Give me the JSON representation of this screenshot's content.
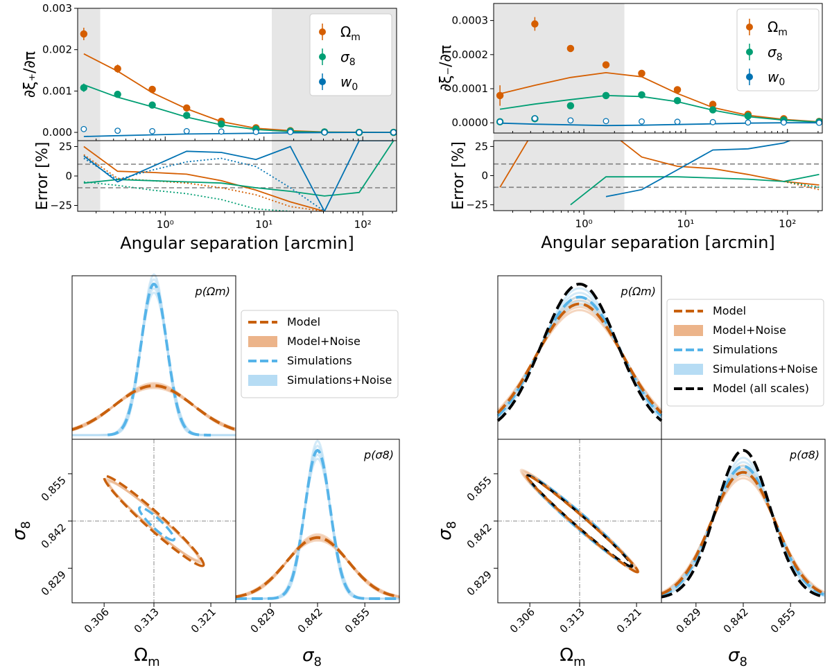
{
  "colors": {
    "omega": "#d55e00",
    "sigma": "#009e73",
    "w0": "#0072b2",
    "model": "#c8600d",
    "model_noise": "#ecb48a",
    "sim": "#56b4e9",
    "sim_noise": "#b6dcf4",
    "allscales": "#000000",
    "shade": "#e6e6e6",
    "grid": "#808080"
  },
  "chart_data": [
    {
      "id": "xi_plus",
      "type": "scatter+line",
      "title": "",
      "xlabel": "Angular separation [arcmin]",
      "ylabel_top": "∂ξ₊/∂π",
      "ylabel_bottom": "Error [%]",
      "xscale": "log",
      "xlim": [
        0.13,
        220
      ],
      "ylim_top": [
        -0.0002,
        0.003
      ],
      "ylim_bottom": [
        -30,
        30
      ],
      "xticks": [
        {
          "v": 1,
          "label": "10⁰"
        },
        {
          "v": 10,
          "label": "10¹"
        },
        {
          "v": 100,
          "label": "10²"
        }
      ],
      "yticks_top": [
        "0.000",
        "0.001",
        "0.002",
        "0.003"
      ],
      "yticks_bottom": [
        "25",
        "0",
        "−25"
      ],
      "shaded_x": [
        [
          0.13,
          0.22
        ],
        [
          12,
          220
        ]
      ],
      "error_refs": [
        10,
        -10
      ],
      "x": [
        0.15,
        0.33,
        0.74,
        1.65,
        3.7,
        8.3,
        18.5,
        41,
        92,
        205
      ],
      "series": [
        {
          "name": "Ω_m",
          "legend": "Ωm",
          "color_key": "omega",
          "points": [
            0.00238,
            0.00154,
            0.00104,
            0.00059,
            0.00027,
            0.00011,
            4e-05,
            1e-05,
            0.0,
            0.0
          ],
          "errs": [
            0.00015,
            0.0001,
            8e-05,
            4e-05,
            2e-05,
            1e-05,
            1e-05,
            1e-05,
            1e-05,
            1e-05
          ],
          "open": false,
          "model": [
            0.0019,
            0.00148,
            0.00096,
            0.00057,
            0.00026,
            0.0001,
            4e-05,
            1e-05,
            5e-06,
            0.0
          ],
          "error_solid": [
            25,
            4,
            3,
            1.5,
            -4,
            -12,
            -22,
            -30,
            null,
            null
          ],
          "error_dotted": [
            18,
            -2,
            -4,
            -6,
            -10,
            -16,
            -26,
            -30,
            null,
            null
          ]
        },
        {
          "name": "σ_8",
          "legend": "σ8",
          "color_key": "sigma",
          "points": [
            0.00108,
            0.00092,
            0.00066,
            0.00041,
            0.0002,
            8e-05,
            3e-05,
            1e-05,
            0.0,
            0.0
          ],
          "errs": [
            0.0001,
            8e-05,
            6e-05,
            4e-05,
            2e-05,
            1e-05,
            1e-05,
            1e-05,
            1e-05,
            1e-05
          ],
          "open": false,
          "model": [
            0.00115,
            0.00085,
            0.00062,
            0.00037,
            0.00018,
            7e-05,
            2e-05,
            5e-06,
            0.0,
            0.0
          ],
          "error_solid": [
            -6,
            -3,
            -4,
            -5,
            -6,
            -10,
            -13,
            -17,
            -14,
            30
          ],
          "error_dotted": [
            -5,
            -8,
            -12,
            -15,
            -20,
            -28,
            -30,
            null,
            null,
            null
          ]
        },
        {
          "name": "w_0",
          "legend": "w0",
          "color_key": "w0",
          "points": [
            8e-05,
            4e-05,
            3e-05,
            3e-05,
            2e-05,
            1e-05,
            1e-05,
            0.0,
            0.0,
            0.0
          ],
          "errs": [
            3e-05,
            3e-05,
            3e-05,
            2e-05,
            2e-05,
            1e-05,
            1e-05,
            1e-05,
            1e-05,
            1e-05
          ],
          "open": true,
          "model": [
            -0.0001,
            -8e-05,
            -6e-05,
            -4e-05,
            -3e-05,
            -2e-05,
            -1e-05,
            -5e-06,
            0.0,
            0.0
          ],
          "error_solid": [
            17,
            -5,
            8,
            21,
            20,
            14,
            25,
            -30,
            30,
            30
          ],
          "error_dotted": [
            15,
            -3,
            5,
            12,
            15,
            8,
            -10,
            -30,
            null,
            null
          ]
        }
      ]
    },
    {
      "id": "xi_minus",
      "type": "scatter+line",
      "title": "",
      "xlabel": "Angular separation [arcmin]",
      "ylabel_top": "∂ξ₋/∂π",
      "ylabel_bottom": "Error [%]",
      "xscale": "log",
      "xlim": [
        0.13,
        220
      ],
      "ylim_top": [
        -3e-05,
        0.00035
      ],
      "ylim_bottom": [
        -30,
        30
      ],
      "xticks": [
        {
          "v": 1,
          "label": "10⁰"
        },
        {
          "v": 10,
          "label": "10¹"
        },
        {
          "v": 100,
          "label": "10²"
        }
      ],
      "yticks_top": [
        "0.0000",
        "0.0001",
        "0.0002",
        "0.0003"
      ],
      "yticks_bottom": [
        "25",
        "0",
        "−25"
      ],
      "shaded_x": [
        [
          0.13,
          2.5
        ]
      ],
      "error_refs": [
        10,
        -10
      ],
      "x": [
        0.15,
        0.33,
        0.74,
        1.65,
        3.7,
        8.3,
        18.5,
        41,
        92,
        205
      ],
      "series": [
        {
          "name": "Ω_m",
          "legend": "Ωm",
          "color_key": "omega",
          "points": [
            8e-05,
            0.00029,
            0.000218,
            0.00017,
            0.000145,
            9.7e-05,
            5.4e-05,
            2.5e-05,
            1.2e-05,
            4e-06
          ],
          "errs": [
            3e-05,
            2e-05,
            1e-05,
            1e-05,
            8e-06,
            8e-06,
            6e-06,
            5e-06,
            4e-06,
            3e-06
          ],
          "open": false,
          "model": [
            8.5e-05,
            0.00011,
            0.000133,
            0.000147,
            0.000135,
            8.6e-05,
            4.5e-05,
            2.2e-05,
            1e-05,
            3e-06
          ],
          "error_solid": [
            -10,
            40,
            40,
            40,
            16,
            8,
            6,
            1,
            -5,
            -8
          ],
          "error_dotted": [
            null,
            null,
            null,
            null,
            null,
            null,
            null,
            null,
            -5,
            -12
          ]
        },
        {
          "name": "σ_8",
          "legend": "σ8",
          "color_key": "sigma",
          "points": [
            3e-06,
            1.2e-05,
            5e-05,
            8e-05,
            8.2e-05,
            6.5e-05,
            3.8e-05,
            2e-05,
            8e-06,
            3e-06
          ],
          "errs": [
            1e-05,
            8e-06,
            5e-06,
            5e-06,
            5e-06,
            4e-06,
            4e-06,
            3e-06,
            3e-06,
            2e-06
          ],
          "open": false,
          "model": [
            4e-05,
            5.5e-05,
            6.8e-05,
            8e-05,
            7.7e-05,
            6.2e-05,
            3.7e-05,
            1.8e-05,
            8e-06,
            2e-06
          ],
          "error_solid": [
            null,
            null,
            -25,
            -1,
            -1,
            -1,
            -2,
            -3,
            -5,
            1
          ],
          "error_dotted": [
            null,
            null,
            null,
            null,
            null,
            null,
            null,
            null,
            -5,
            -10
          ]
        },
        {
          "name": "w_0",
          "legend": "w0",
          "color_key": "w0",
          "points": [
            3e-06,
            1.3e-05,
            7e-06,
            5e-06,
            4e-06,
            3e-06,
            2e-06,
            1e-06,
            1e-06,
            0.0
          ],
          "errs": [
            8e-06,
            6e-06,
            4e-06,
            3e-06,
            3e-06,
            2e-06,
            2e-06,
            2e-06,
            2e-06,
            1e-06
          ],
          "open": true,
          "model": [
            -1e-06,
            -4e-06,
            -6e-06,
            -8e-06,
            -7e-06,
            -5e-06,
            -3e-06,
            -1e-06,
            0.0,
            0.0
          ],
          "error_solid": [
            null,
            null,
            null,
            -18,
            -12,
            5,
            22,
            23,
            28,
            40
          ],
          "error_dotted": [
            null,
            null,
            null,
            null,
            null,
            null,
            null,
            null,
            null,
            null
          ]
        }
      ]
    },
    {
      "id": "corner_left",
      "type": "corner",
      "params": [
        "Ω_m",
        "σ_8"
      ],
      "param_labels": {
        "omega": "Ωm",
        "sigma": "σ8"
      },
      "fiducial": {
        "omega": 0.313,
        "sigma": 0.842
      },
      "omega_ticks": [
        "0.306",
        "0.313",
        "0.321"
      ],
      "sigma_ticks": [
        "0.829",
        "0.842",
        "0.855"
      ],
      "diag_labels": [
        "p(Ωm)",
        "p(σ8)"
      ],
      "legend": [
        "Model",
        "Model+Noise",
        "Simulations",
        "Simulations+Noise"
      ],
      "widths": {
        "model_omega": 0.0055,
        "sim_omega": 0.0018,
        "model_sigma": 0.0085,
        "sim_sigma": 0.0035
      },
      "ellipse_correlation": -0.985
    },
    {
      "id": "corner_right",
      "type": "corner",
      "params": [
        "Ω_m",
        "σ_8"
      ],
      "param_labels": {
        "omega": "Ωm",
        "sigma": "σ8"
      },
      "fiducial": {
        "omega": 0.313,
        "sigma": 0.842
      },
      "omega_ticks": [
        "0.306",
        "0.313",
        "0.321"
      ],
      "sigma_ticks": [
        "0.829",
        "0.842",
        "0.855"
      ],
      "diag_labels": [
        "p(Ωm)",
        "p(σ8)"
      ],
      "legend": [
        "Model",
        "Model+Noise",
        "Simulations",
        "Simulations+Noise",
        "Model (all scales)"
      ],
      "widths": {
        "model_omega": 0.0061,
        "sim_omega": 0.0058,
        "all_omega": 0.0053,
        "model_sigma": 0.0088,
        "sim_sigma": 0.0084,
        "all_sigma": 0.0075
      },
      "ellipse_correlation": -0.99
    }
  ]
}
